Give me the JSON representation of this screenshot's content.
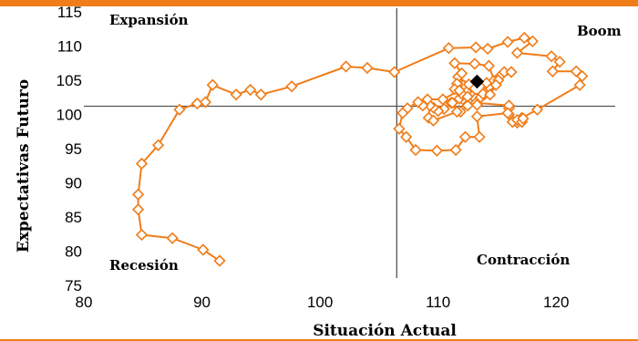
{
  "chart_data": {
    "type": "scatter",
    "xlabel": "Situación Actual",
    "ylabel": "Expectativas Futuro",
    "xlim": [
      80,
      125
    ],
    "ylim": [
      75,
      115
    ],
    "xticks": [
      80,
      90,
      100,
      110,
      120
    ],
    "yticks": [
      75,
      80,
      85,
      90,
      95,
      100,
      105,
      110,
      115
    ],
    "reference_lines": {
      "x": 106.5,
      "y": 101.2
    },
    "quadrant_labels": {
      "top_left": "Expansión",
      "top_right": "Boom",
      "bottom_left": "Recesión",
      "bottom_right": "Contracción"
    },
    "colors": {
      "series": "#F07D1A",
      "accent_bar": "#F07D1A",
      "reference": "#555555",
      "current_point": "#000000"
    },
    "series": [
      {
        "marker": "diamond-open",
        "points": [
          [
            91.5,
            78.6
          ],
          [
            90.1,
            80.2
          ],
          [
            87.5,
            81.9
          ],
          [
            84.9,
            82.4
          ],
          [
            84.6,
            86.1
          ],
          [
            84.6,
            88.3
          ],
          [
            84.9,
            92.8
          ],
          [
            86.3,
            95.5
          ],
          [
            88.1,
            100.7
          ],
          [
            89.6,
            101.6
          ],
          [
            90.3,
            101.8
          ],
          [
            90.9,
            104.3
          ],
          [
            92.9,
            102.9
          ],
          [
            94.1,
            103.6
          ],
          [
            95.0,
            102.9
          ],
          [
            97.6,
            104.1
          ],
          [
            102.2,
            107.0
          ],
          [
            104.0,
            106.8
          ],
          [
            106.3,
            106.2
          ],
          [
            110.9,
            109.7
          ],
          [
            113.2,
            109.8
          ],
          [
            114.2,
            109.6
          ],
          [
            115.9,
            110.6
          ],
          [
            117.3,
            111.2
          ],
          [
            118.0,
            110.7
          ],
          [
            116.7,
            109.0
          ],
          [
            119.6,
            108.5
          ],
          [
            120.3,
            107.7
          ],
          [
            119.7,
            106.3
          ],
          [
            121.7,
            106.3
          ],
          [
            122.2,
            105.6
          ],
          [
            122.0,
            104.3
          ],
          [
            118.4,
            100.7
          ],
          [
            117.1,
            99.5
          ],
          [
            116.7,
            98.8
          ],
          [
            116.3,
            98.9
          ],
          [
            116.0,
            100.0
          ],
          [
            116.0,
            100.9
          ],
          [
            116.0,
            101.3
          ],
          [
            113.2,
            101.7
          ],
          [
            113.6,
            102.5
          ],
          [
            113.9,
            103.2
          ],
          [
            114.3,
            104.0
          ],
          [
            114.7,
            104.9
          ],
          [
            115.2,
            105.5
          ],
          [
            115.6,
            106.2
          ],
          [
            116.2,
            106.2
          ],
          [
            115.1,
            105.0
          ],
          [
            114.1,
            104.6
          ],
          [
            113.8,
            103.0
          ],
          [
            112.7,
            103.0
          ],
          [
            112.1,
            102.2
          ],
          [
            112.5,
            101.3
          ],
          [
            111.9,
            100.4
          ],
          [
            111.1,
            101.7
          ],
          [
            110.5,
            100.8
          ],
          [
            110.0,
            100.5
          ],
          [
            109.6,
            101.0
          ],
          [
            109.3,
            101.3
          ],
          [
            109.2,
            99.5
          ],
          [
            109.6,
            99.1
          ],
          [
            111.6,
            100.4
          ],
          [
            111.2,
            101.7
          ],
          [
            111.8,
            102.3
          ],
          [
            112.4,
            103.3
          ],
          [
            112.6,
            104.4
          ],
          [
            111.7,
            105.5
          ],
          [
            111.6,
            104.5
          ],
          [
            111.4,
            103.7
          ],
          [
            112.0,
            103.0
          ],
          [
            112.0,
            106.0
          ],
          [
            111.4,
            107.5
          ],
          [
            113.1,
            107.4
          ],
          [
            114.3,
            107.1
          ],
          [
            114.9,
            104.3
          ],
          [
            114.4,
            102.9
          ],
          [
            113.3,
            101.4
          ],
          [
            112.5,
            102.6
          ],
          [
            111.8,
            103.5
          ],
          [
            110.4,
            102.2
          ],
          [
            109.1,
            102.2
          ],
          [
            108.7,
            101.3
          ],
          [
            108.3,
            101.8
          ],
          [
            107.4,
            100.9
          ],
          [
            107.0,
            100.2
          ],
          [
            106.7,
            97.9
          ],
          [
            107.3,
            96.7
          ],
          [
            108.1,
            94.8
          ],
          [
            109.9,
            94.7
          ],
          [
            111.5,
            94.8
          ],
          [
            112.3,
            96.7
          ],
          [
            113.5,
            96.7
          ],
          [
            113.3,
            99.7
          ],
          [
            115.9,
            100.2
          ],
          [
            116.7,
            99.2
          ],
          [
            117.1,
            98.9
          ],
          [
            117.2,
            99.4
          ]
        ]
      }
    ],
    "current_point": [
      113.3,
      104.8
    ]
  }
}
